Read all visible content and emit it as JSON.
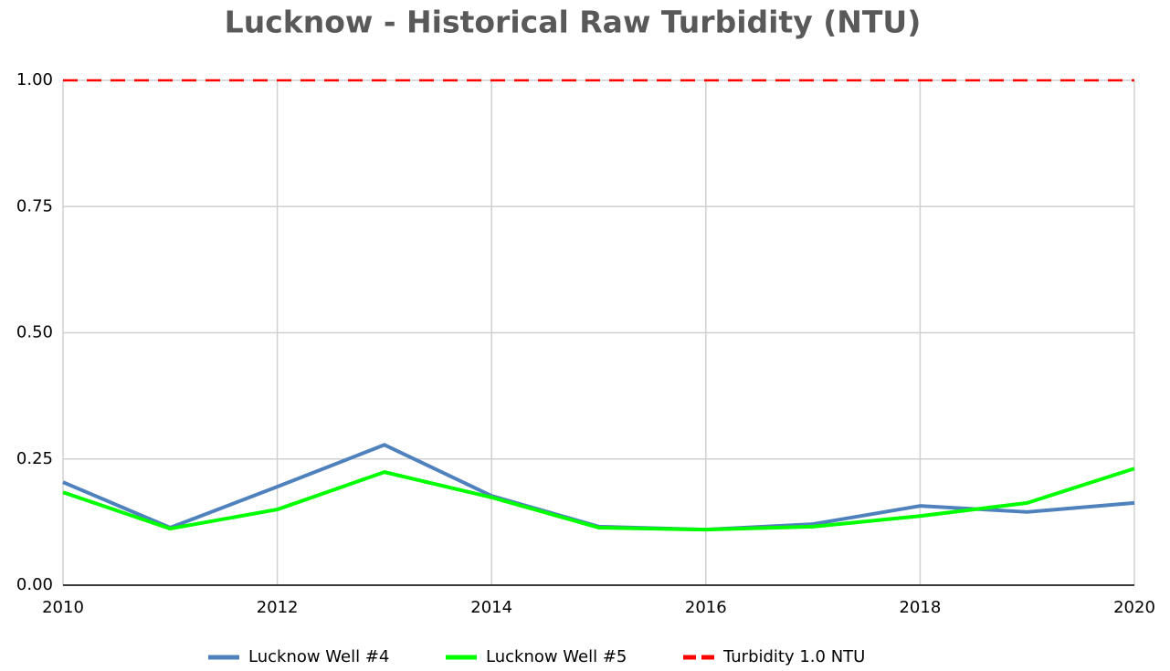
{
  "chart_data": {
    "type": "line",
    "title": "Lucknow - Historical Raw Turbidity (NTU)",
    "x": [
      2010,
      2011,
      2012,
      2013,
      2014,
      2015,
      2016,
      2017,
      2018,
      2019,
      2020
    ],
    "series": [
      {
        "name": "Lucknow Well #4",
        "color": "#4f81bd",
        "values": [
          0.204,
          0.114,
          0.195,
          0.278,
          0.177,
          0.116,
          0.11,
          0.121,
          0.157,
          0.145,
          0.163
        ]
      },
      {
        "name": "Lucknow Well #5",
        "color": "#00ff00",
        "values": [
          0.184,
          0.112,
          0.15,
          0.224,
          0.174,
          0.114,
          0.11,
          0.116,
          0.137,
          0.163,
          0.231
        ]
      },
      {
        "name": "Turbidity 1.0 NTU",
        "color": "#ff0000",
        "line_style": "dashed",
        "values": [
          1,
          1,
          1,
          1,
          1,
          1,
          1,
          1,
          1,
          1,
          1
        ]
      }
    ],
    "xlim": [
      2010,
      2020
    ],
    "xticks": [
      2010,
      2012,
      2014,
      2016,
      2018,
      2020
    ],
    "ylim": [
      0,
      1
    ],
    "yticks": [
      {
        "value": 0,
        "label": "0.00"
      },
      {
        "value": 0.25,
        "label": "0.25"
      },
      {
        "value": 0.5,
        "label": "0.50"
      },
      {
        "value": 0.75,
        "label": "0.75"
      },
      {
        "value": 1,
        "label": "1.00"
      }
    ],
    "grid": true,
    "legend": "bottom"
  }
}
